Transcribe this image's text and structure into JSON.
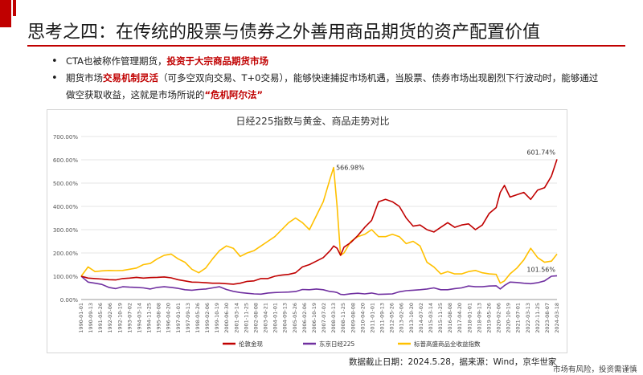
{
  "slide": {
    "title": "思考之四：在传统的股票与债券之外善用商品期货的资产配置价值",
    "accent_color": "#c00000"
  },
  "bullets": [
    {
      "parts": [
        {
          "text": "CTA也被称作管理期货，",
          "highlight": false
        },
        {
          "text": "投资于大宗商品期货市场",
          "highlight": true
        }
      ]
    },
    {
      "parts": [
        {
          "text": "期货市场",
          "highlight": false
        },
        {
          "text": "交易机制灵活",
          "highlight": true
        },
        {
          "text": "（可多空双向交易、T+0交易），能够快速捕捉市场机遇，当股票、债券市场出现剧烈下行波动时，能够通过做空获取收益，这就是市场所说的",
          "highlight": false
        },
        {
          "text": "“危机阿尔法”",
          "highlight": true
        }
      ]
    }
  ],
  "chart_data": {
    "type": "line",
    "title": "日经225指数与黄金、商品走势对比",
    "xlabel": "",
    "ylabel": "",
    "ylim": [
      0,
      700
    ],
    "y_ticks": [
      "0.00%",
      "100.00%",
      "200.00%",
      "300.00%",
      "400.00%",
      "500.00%",
      "600.00%",
      "700.00%"
    ],
    "x_ticks": [
      "1990-01-01",
      "1990-09-13",
      "1991-05-26",
      "1992-02-06",
      "1992-10-19",
      "1993-07-02",
      "1994-03-14",
      "1994-11-25",
      "1995-08-08",
      "1996-04-20",
      "1997-01-01",
      "1997-09-13",
      "1998-05-26",
      "1999-02-06",
      "1999-10-19",
      "2000-06-30",
      "2001-03-14",
      "2001-11-25",
      "2002-08-08",
      "2003-04-21",
      "2004-01-01",
      "2004-09-13",
      "2005-05-26",
      "2006-02-06",
      "2006-10-19",
      "2007-07-02",
      "2008-03-13",
      "2008-11-25",
      "2009-08-08",
      "2010-04-20",
      "2011-01-01",
      "2011-09-13",
      "2012-05-26",
      "2013-02-06",
      "2013-10-20",
      "2014-07-02",
      "2015-03-14",
      "2015-11-25",
      "2016-08-08",
      "2017-04-20",
      "2018-01-01",
      "2018-09-13",
      "2019-05-26",
      "2020-02-06",
      "2020-10-19",
      "2021-07-01",
      "2022-03-13",
      "2022-11-25",
      "2023-08-07",
      "2024-03-18"
    ],
    "grid": true,
    "legend_position": "bottom",
    "annotations": [
      "601.74%",
      "566.98%",
      "101.56%"
    ],
    "x": [
      1990.0,
      1990.5,
      1991.0,
      1991.5,
      1992.0,
      1992.5,
      1993.0,
      1993.5,
      1994.0,
      1994.5,
      1995.0,
      1995.5,
      1996.0,
      1996.5,
      1997.0,
      1997.5,
      1998.0,
      1998.5,
      1999.0,
      1999.5,
      2000.0,
      2000.5,
      2001.0,
      2001.5,
      2002.0,
      2002.5,
      2003.0,
      2003.5,
      2004.0,
      2004.5,
      2005.0,
      2005.5,
      2006.0,
      2006.5,
      2007.0,
      2007.5,
      2008.0,
      2008.25,
      2008.5,
      2008.75,
      2009.0,
      2009.5,
      2010.0,
      2010.5,
      2011.0,
      2011.5,
      2012.0,
      2012.5,
      2013.0,
      2013.5,
      2014.0,
      2014.5,
      2015.0,
      2015.5,
      2016.0,
      2016.5,
      2017.0,
      2017.5,
      2018.0,
      2018.5,
      2019.0,
      2019.5,
      2020.0,
      2020.3,
      2020.6,
      2021.0,
      2021.5,
      2022.0,
      2022.5,
      2023.0,
      2023.5,
      2024.0,
      2024.4
    ],
    "series": [
      {
        "name": "伦敦金现",
        "color": "#c00000",
        "values": [
          100,
          92,
          90,
          88,
          85,
          84,
          90,
          92,
          95,
          92,
          94,
          95,
          97,
          93,
          85,
          80,
          75,
          74,
          72,
          70,
          70,
          68,
          66,
          70,
          78,
          80,
          90,
          90,
          100,
          105,
          108,
          115,
          140,
          150,
          165,
          180,
          210,
          230,
          220,
          190,
          225,
          245,
          275,
          310,
          340,
          420,
          430,
          420,
          400,
          350,
          315,
          320,
          300,
          290,
          310,
          330,
          310,
          320,
          325,
          300,
          320,
          370,
          395,
          460,
          490,
          440,
          450,
          460,
          430,
          470,
          480,
          530,
          602
        ]
      },
      {
        "name": "东京日经225",
        "color": "#7030a0",
        "values": [
          100,
          75,
          70,
          65,
          52,
          47,
          55,
          53,
          52,
          50,
          45,
          52,
          55,
          52,
          48,
          42,
          40,
          43,
          45,
          50,
          55,
          43,
          35,
          30,
          27,
          24,
          23,
          28,
          30,
          31,
          32,
          34,
          43,
          42,
          45,
          42,
          34,
          33,
          30,
          22,
          21,
          25,
          27,
          24,
          28,
          22,
          23,
          24,
          33,
          38,
          40,
          42,
          45,
          50,
          42,
          42,
          47,
          50,
          58,
          55,
          55,
          58,
          59,
          45,
          60,
          75,
          73,
          70,
          68,
          72,
          80,
          100,
          102
        ]
      },
      {
        "name": "标普高盛商品全收益指数",
        "color": "#ffc000",
        "values": [
          100,
          140,
          120,
          123,
          125,
          124,
          125,
          130,
          135,
          150,
          155,
          175,
          190,
          195,
          175,
          160,
          130,
          115,
          135,
          175,
          210,
          230,
          220,
          185,
          200,
          210,
          230,
          250,
          270,
          300,
          330,
          350,
          330,
          300,
          360,
          420,
          520,
          567,
          400,
          190,
          200,
          250,
          270,
          280,
          300,
          270,
          270,
          280,
          270,
          240,
          250,
          230,
          160,
          140,
          110,
          120,
          110,
          110,
          120,
          125,
          115,
          110,
          108,
          70,
          80,
          110,
          135,
          170,
          220,
          180,
          160,
          165,
          195
        ]
      }
    ]
  },
  "source_text": "数据截止日期：2024.5.28，据来源：Wind，京华世家",
  "footer_note": "市场有风险，投资需谨慎"
}
